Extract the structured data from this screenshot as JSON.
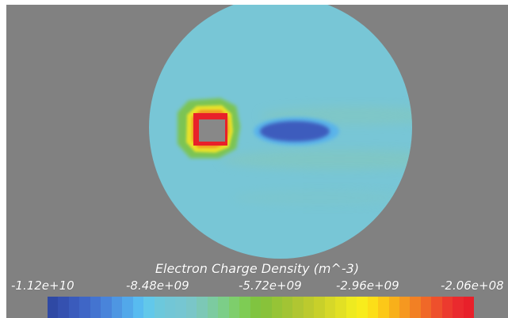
{
  "chart_data": {
    "type": "heatmap",
    "title": "Electron Charge Density (m^-3)",
    "colorbar": {
      "min": -11200000000.0,
      "max": -206000000.0,
      "tick_labels": [
        "-1.12e+10",
        "-8.48e+09",
        "-5.72e+09",
        "-2.96e+09",
        "-2.06e+08"
      ],
      "tick_values": [
        -11200000000.0,
        -8480000000.0,
        -5720000000.0,
        -2960000000.0,
        -206000000.0
      ],
      "colors": [
        "#2f49a4",
        "#3551b0",
        "#3a5bbc",
        "#3f66c6",
        "#4474d0",
        "#4984da",
        "#4e96e2",
        "#52a8ea",
        "#58bbf0",
        "#62c8ea",
        "#6cc8dc",
        "#72c6d6",
        "#76c6d2",
        "#7ac6c8",
        "#7cc8b6",
        "#7ccba0",
        "#7cce88",
        "#7ece6c",
        "#7ecc54",
        "#80c440",
        "#88c23a",
        "#96c436",
        "#a2c434",
        "#b0c632",
        "#bcca2e",
        "#c8d02a",
        "#d6d828",
        "#e2e024",
        "#eeea20",
        "#f8ec1c",
        "#fcde18",
        "#fcc818",
        "#f8b01a",
        "#f69820",
        "#f28024",
        "#f06828",
        "#ee502c",
        "#ec3a2e",
        "#ea2a2e",
        "#e8202a"
      ]
    },
    "domain_shape": "circle",
    "background_level": -6000000000.0,
    "features": [
      {
        "name": "probe",
        "level": -400000000.0,
        "description": "high-density ring around rectangular probe"
      },
      {
        "name": "wake",
        "level": -10700000000.0,
        "description": "depleted wake downstream of probe"
      }
    ],
    "colors": {
      "background_gray": "#818181",
      "probe_body": "#888888",
      "domain_base": "#78c6d6"
    }
  }
}
